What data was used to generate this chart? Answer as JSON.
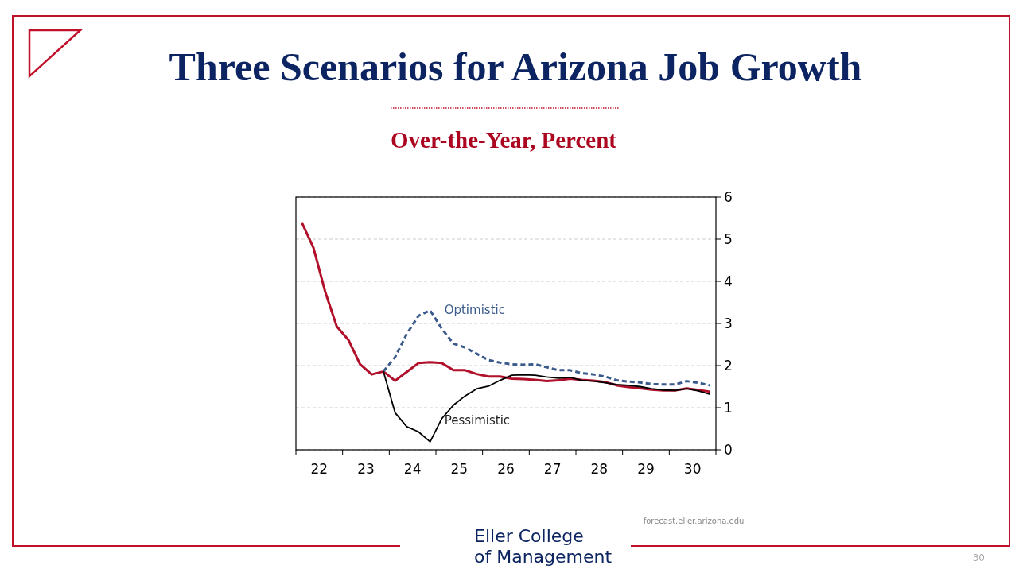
{
  "chart_data": {
    "type": "line",
    "title": "Three Scenarios for Arizona Job Growth",
    "subtitle": "Over-the-Year, Percent",
    "annotations": [
      "forecast.eller.arizona.edu",
      "Eller College of Management",
      "30"
    ],
    "x": [
      22.125,
      22.375,
      22.625,
      22.875,
      23.125,
      23.375,
      23.625,
      23.875,
      24.125,
      24.375,
      24.625,
      24.875,
      25.125,
      25.375,
      25.625,
      25.875,
      26.125,
      26.375,
      26.625,
      26.875,
      27.125,
      27.375,
      27.625,
      27.875,
      28.125,
      28.375,
      28.625,
      28.875,
      29.125,
      29.375,
      29.625,
      29.875,
      30.125,
      30.375,
      30.625,
      30.875
    ],
    "series": [
      {
        "color": "#b0102a",
        "values": [
          5.4,
          4.8,
          3.76,
          2.93,
          2.61,
          2.03,
          1.79,
          1.86,
          1.64,
          1.85,
          2.06,
          2.08,
          2.06,
          1.89,
          1.89,
          1.8,
          1.74,
          1.74,
          1.69,
          1.68,
          1.66,
          1.63,
          1.65,
          1.69,
          1.66,
          1.64,
          1.61,
          1.53,
          1.49,
          1.46,
          1.43,
          1.41,
          1.41,
          1.46,
          1.42,
          1.38
        ]
      },
      {
        "name": "Optimistic",
        "color": "#3a5a8c",
        "line_style": "dashed",
        "values": [
          null,
          null,
          null,
          null,
          null,
          null,
          null,
          1.86,
          2.2,
          2.75,
          3.18,
          3.31,
          2.88,
          2.52,
          2.43,
          2.28,
          2.13,
          2.07,
          2.03,
          2.02,
          2.03,
          1.96,
          1.89,
          1.89,
          1.82,
          1.79,
          1.74,
          1.65,
          1.62,
          1.6,
          1.56,
          1.55,
          1.55,
          1.63,
          1.59,
          1.53
        ]
      },
      {
        "name": "Pessimistic",
        "color": "#000000",
        "values": [
          null,
          null,
          null,
          null,
          null,
          null,
          null,
          1.86,
          0.88,
          0.55,
          0.43,
          0.19,
          0.74,
          1.06,
          1.28,
          1.45,
          1.51,
          1.65,
          1.77,
          1.78,
          1.77,
          1.73,
          1.7,
          1.72,
          1.65,
          1.63,
          1.59,
          1.55,
          1.53,
          1.5,
          1.45,
          1.42,
          1.41,
          1.45,
          1.4,
          1.32
        ]
      }
    ],
    "xlim": [
      22,
      31
    ],
    "xticks": [
      {
        "value": 22,
        "label": null
      },
      {
        "value": 22.5,
        "label": "22"
      },
      {
        "value": 23,
        "label": null
      },
      {
        "value": 23.5,
        "label": "23"
      },
      {
        "value": 24,
        "label": null
      },
      {
        "value": 24.5,
        "label": "24"
      },
      {
        "value": 25,
        "label": null
      },
      {
        "value": 25.5,
        "label": "25"
      },
      {
        "value": 26,
        "label": null
      },
      {
        "value": 26.5,
        "label": "26"
      },
      {
        "value": 27,
        "label": null
      },
      {
        "value": 27.5,
        "label": "27"
      },
      {
        "value": 28,
        "label": null
      },
      {
        "value": 28.5,
        "label": "28"
      },
      {
        "value": 29,
        "label": null
      },
      {
        "value": 29.5,
        "label": "29"
      },
      {
        "value": 30,
        "label": null
      },
      {
        "value": 30.5,
        "label": "30"
      },
      {
        "value": 31,
        "label": null
      }
    ],
    "ylim": [
      0,
      6
    ],
    "yticks": [
      0,
      1,
      2,
      3,
      4,
      5,
      6
    ],
    "grid": "y",
    "line_style": "solid"
  }
}
